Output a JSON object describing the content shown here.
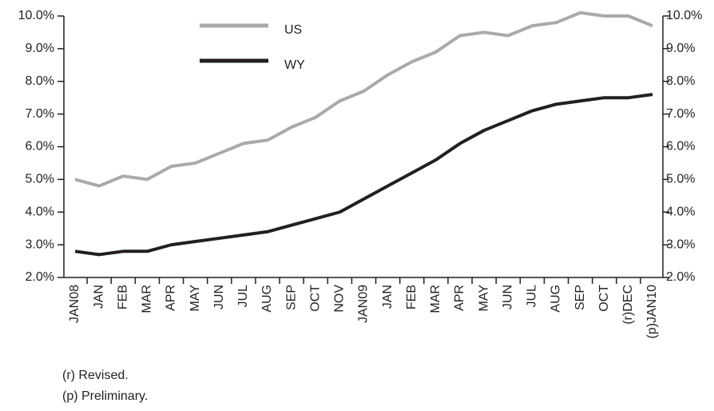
{
  "chart_data": {
    "type": "line",
    "categories": [
      "JAN08",
      "JAN",
      "FEB",
      "MAR",
      "APR",
      "MAY",
      "JUN",
      "JUL",
      "AUG",
      "SEP",
      "OCT",
      "NOV",
      "JAN09",
      "JAN",
      "FEB",
      "MAR",
      "APR",
      "MAY",
      "JUN",
      "JUL",
      "AUG",
      "SEP",
      "OCT",
      "(r)DEC",
      "(p)JAN10"
    ],
    "series": [
      {
        "name": "US",
        "color": "#aaaaaa",
        "values": [
          5.0,
          4.8,
          5.1,
          5.0,
          5.4,
          5.5,
          5.8,
          6.1,
          6.2,
          6.6,
          6.9,
          7.4,
          7.7,
          8.2,
          8.6,
          8.9,
          9.4,
          9.5,
          9.4,
          9.7,
          9.8,
          10.1,
          10.0,
          10.0,
          9.7
        ]
      },
      {
        "name": "WY",
        "color": "#231f20",
        "values": [
          2.8,
          2.7,
          2.8,
          2.8,
          3.0,
          3.1,
          3.2,
          3.3,
          3.4,
          3.6,
          3.8,
          4.0,
          4.4,
          4.8,
          5.2,
          5.6,
          6.1,
          6.5,
          6.8,
          7.1,
          7.3,
          7.4,
          7.5,
          7.5,
          7.6
        ]
      }
    ],
    "ylim": [
      2,
      10
    ],
    "yticks": [
      {
        "value": 2,
        "label": "2.0%"
      },
      {
        "value": 3,
        "label": "3.0%"
      },
      {
        "value": 4,
        "label": "4.0%"
      },
      {
        "value": 5,
        "label": "5.0%"
      },
      {
        "value": 6,
        "label": "6.0%"
      },
      {
        "value": 7,
        "label": "7.0%"
      },
      {
        "value": 8,
        "label": "8.0%"
      },
      {
        "value": 9,
        "label": "9.0%"
      },
      {
        "value": 10,
        "label": "10.0%"
      }
    ],
    "y2lim": [
      2,
      10
    ],
    "y2ticks": [
      {
        "value": 2,
        "label": "2.0%"
      },
      {
        "value": 3,
        "label": "3.0%"
      },
      {
        "value": 4,
        "label": "4.0%"
      },
      {
        "value": 5,
        "label": "5.0%"
      },
      {
        "value": 6,
        "label": "6.0%"
      },
      {
        "value": 7,
        "label": "7.0%"
      },
      {
        "value": 8,
        "label": "8.0%"
      },
      {
        "value": 9,
        "label": "9.0%"
      },
      {
        "value": 10,
        "label": "10.0%"
      }
    ],
    "notes": [
      "(r) Revised.",
      "(p) Preliminary."
    ]
  }
}
